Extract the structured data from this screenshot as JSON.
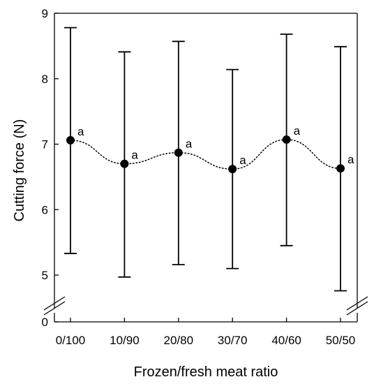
{
  "chart_data": {
    "type": "scatter",
    "xlabel": "Frozen/fresh meat ratio",
    "ylabel": "Cutting force (N)",
    "categories": [
      "0/100",
      "10/90",
      "20/80",
      "30/70",
      "40/60",
      "50/50"
    ],
    "series": [
      {
        "values": [
          7.06,
          6.7,
          6.87,
          6.62,
          7.07,
          6.63
        ],
        "error_low": [
          5.33,
          4.97,
          5.16,
          5.1,
          5.45,
          4.76
        ],
        "error_high": [
          8.78,
          8.41,
          8.57,
          8.14,
          8.68,
          8.49
        ],
        "significance_labels": [
          "a",
          "a",
          "a",
          "a",
          "a",
          "a"
        ],
        "line_style": "dotted",
        "marker": "filled-circle"
      }
    ],
    "ylim": [
      0,
      9
    ],
    "axis_break": [
      0,
      4.5
    ],
    "yticks": [
      0,
      5,
      6,
      7,
      8,
      9
    ],
    "grid": false
  }
}
